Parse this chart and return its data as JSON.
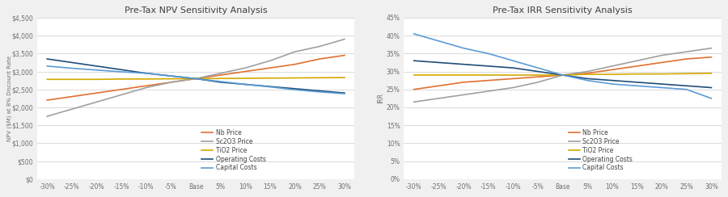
{
  "x_labels": [
    "-30%",
    "-25%",
    "-20%",
    "-15%",
    "-10%",
    "-5%",
    "Base",
    "5%",
    "10%",
    "15%",
    "20%",
    "25%",
    "30%"
  ],
  "x_values": [
    -30,
    -25,
    -20,
    -15,
    -10,
    -5,
    0,
    5,
    10,
    15,
    20,
    25,
    30
  ],
  "npv": {
    "title": "Pre-Tax NPV Sensitivity Analysis",
    "ylabel": "NPV ($M) at 8% Discount Rate",
    "ylim": [
      0,
      4500
    ],
    "yticks": [
      0,
      500,
      1000,
      1500,
      2000,
      2500,
      3000,
      3500,
      4000,
      4500
    ],
    "series": {
      "Nb Price": [
        2200,
        2300,
        2400,
        2500,
        2600,
        2700,
        2800,
        2900,
        3000,
        3100,
        3200,
        3350,
        3450
      ],
      "Sc2O3 Price": [
        1750,
        1950,
        2150,
        2350,
        2550,
        2700,
        2800,
        2950,
        3100,
        3300,
        3550,
        3700,
        3900
      ],
      "TiO2 Price": [
        2780,
        2780,
        2780,
        2790,
        2790,
        2795,
        2800,
        2805,
        2810,
        2815,
        2820,
        2825,
        2830
      ],
      "Operating Costs": [
        3350,
        3250,
        3150,
        3050,
        2950,
        2875,
        2800,
        2700,
        2640,
        2580,
        2520,
        2460,
        2400
      ],
      "Capital Costs": [
        3150,
        3090,
        3040,
        2990,
        2950,
        2875,
        2800,
        2720,
        2640,
        2570,
        2490,
        2430,
        2380
      ]
    },
    "colors": {
      "Nb Price": "#e07030",
      "Sc2O3 Price": "#a0a0a0",
      "TiO2 Price": "#d4a800",
      "Operating Costs": "#1f4e79",
      "Capital Costs": "#5b9bd5"
    }
  },
  "irr": {
    "title": "Pre-Tax IRR Sensitivity Analysis",
    "ylabel": "IRR",
    "ylim": [
      0,
      45
    ],
    "yticks": [
      0,
      5,
      10,
      15,
      20,
      25,
      30,
      35,
      40,
      45
    ],
    "series": {
      "Nb Price": [
        25.0,
        26.0,
        27.0,
        27.5,
        28.0,
        28.5,
        29.0,
        29.5,
        30.5,
        31.5,
        32.5,
        33.5,
        34.0
      ],
      "Sc2O3 Price": [
        21.5,
        22.5,
        23.5,
        24.5,
        25.5,
        27.0,
        29.0,
        30.0,
        31.5,
        33.0,
        34.5,
        35.5,
        36.5
      ],
      "TiO2 Price": [
        29.0,
        29.0,
        29.0,
        29.0,
        29.0,
        29.0,
        29.0,
        29.2,
        29.2,
        29.3,
        29.3,
        29.4,
        29.5
      ],
      "Operating Costs": [
        33.0,
        32.5,
        32.0,
        31.5,
        31.0,
        30.0,
        29.0,
        28.0,
        27.5,
        27.0,
        26.5,
        26.0,
        25.5
      ],
      "Capital Costs": [
        40.5,
        38.5,
        36.5,
        35.0,
        33.0,
        31.0,
        29.0,
        27.5,
        26.5,
        26.0,
        25.5,
        25.0,
        22.5
      ]
    },
    "colors": {
      "Nb Price": "#e07030",
      "Sc2O3 Price": "#a0a0a0",
      "TiO2 Price": "#d4a800",
      "Operating Costs": "#1f4e79",
      "Capital Costs": "#5b9bd5"
    }
  },
  "background_color": "#ffffff",
  "grid_color": "#d5d5d5",
  "legend_order": [
    "Nb Price",
    "Sc2O3 Price",
    "TiO2 Price",
    "Operating Costs",
    "Capital Costs"
  ],
  "outer_bg": "#f0f0f0"
}
